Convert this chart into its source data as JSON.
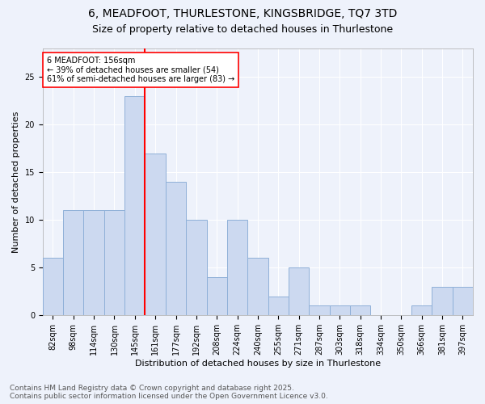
{
  "title_line1": "6, MEADFOOT, THURLESTONE, KINGSBRIDGE, TQ7 3TD",
  "title_line2": "Size of property relative to detached houses in Thurlestone",
  "xlabel": "Distribution of detached houses by size in Thurlestone",
  "ylabel": "Number of detached properties",
  "categories": [
    "82sqm",
    "98sqm",
    "114sqm",
    "130sqm",
    "145sqm",
    "161sqm",
    "177sqm",
    "192sqm",
    "208sqm",
    "224sqm",
    "240sqm",
    "255sqm",
    "271sqm",
    "287sqm",
    "303sqm",
    "318sqm",
    "334sqm",
    "350sqm",
    "366sqm",
    "381sqm",
    "397sqm"
  ],
  "values": [
    6,
    11,
    11,
    11,
    23,
    17,
    14,
    10,
    4,
    10,
    6,
    2,
    5,
    1,
    1,
    1,
    0,
    0,
    1,
    3,
    3
  ],
  "bar_color": "#ccd9f0",
  "bar_edge_color": "#8fb0d8",
  "highlight_line_idx": 5,
  "highlight_line_color": "red",
  "annotation_text": "6 MEADFOOT: 156sqm\n← 39% of detached houses are smaller (54)\n61% of semi-detached houses are larger (83) →",
  "annotation_box_color": "white",
  "annotation_box_edge": "red",
  "ylim": [
    0,
    28
  ],
  "yticks": [
    0,
    5,
    10,
    15,
    20,
    25
  ],
  "footer_line1": "Contains HM Land Registry data © Crown copyright and database right 2025.",
  "footer_line2": "Contains public sector information licensed under the Open Government Licence v3.0.",
  "background_color": "#eef2fb",
  "title_fontsize": 10,
  "subtitle_fontsize": 9,
  "axis_label_fontsize": 8,
  "tick_fontsize": 7,
  "annotation_fontsize": 7,
  "footer_fontsize": 6.5
}
